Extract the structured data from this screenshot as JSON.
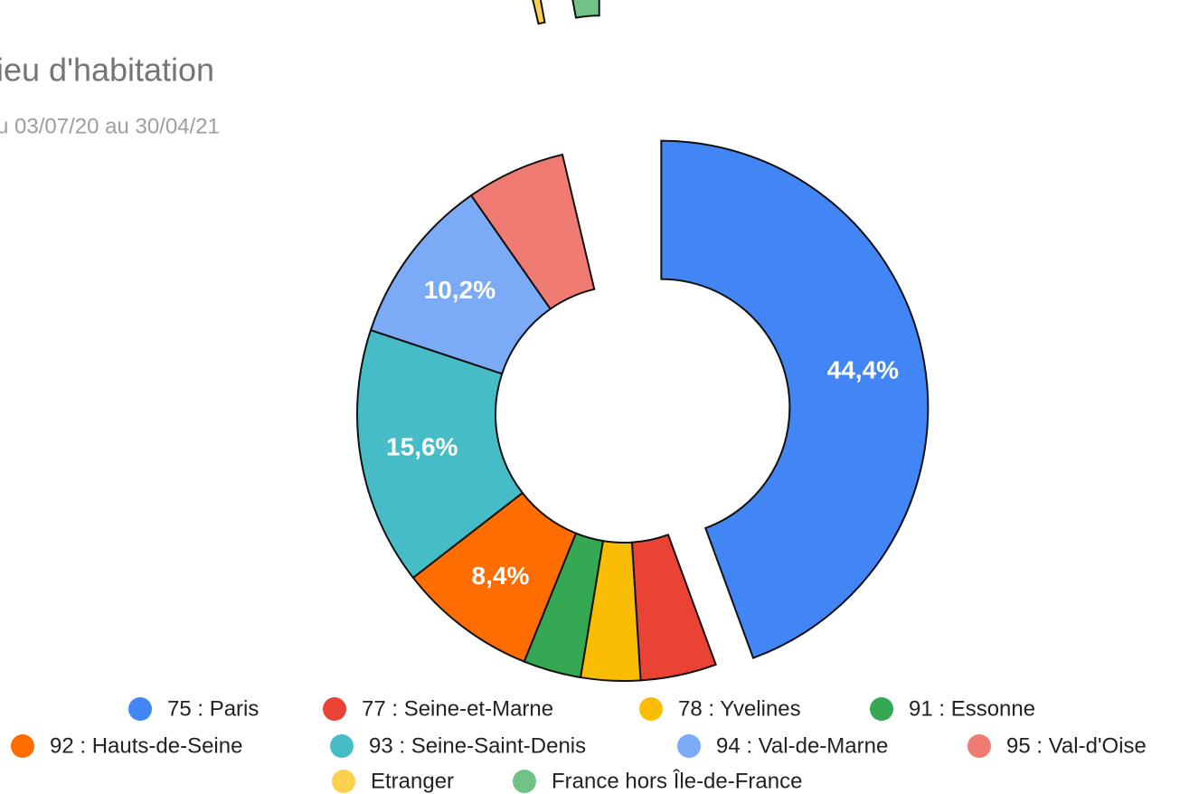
{
  "chart_data": {
    "type": "donut",
    "title": "ieu d'habitation",
    "subtitle": "u 03/07/20 au 30/04/21",
    "categories": [
      "75 : Paris",
      "77 : Seine-et-Marne",
      "78 : Yvelines",
      "91 : Essonne",
      "92 : Hauts-de-Seine",
      "93 : Seine-Saint-Denis",
      "94 : Val-de-Marne",
      "95 : Val-d'Oise",
      "Etranger",
      "France hors Île-de-France"
    ],
    "values": [
      44.4,
      4.6,
      3.6,
      3.5,
      8.4,
      15.6,
      10.2,
      6.0,
      0.8,
      2.9
    ],
    "value_labels": [
      "44,4%",
      null,
      null,
      null,
      "8,4%",
      "15,6%",
      "10,2%",
      null,
      null,
      null
    ],
    "colors": [
      "#4285f4",
      "#ea4335",
      "#fbbc04",
      "#34a853",
      "#ff6d01",
      "#46bdc6",
      "#7baaf7",
      "#f07b72",
      "#fcd04f",
      "#71c287"
    ],
    "legend": "bottom"
  }
}
